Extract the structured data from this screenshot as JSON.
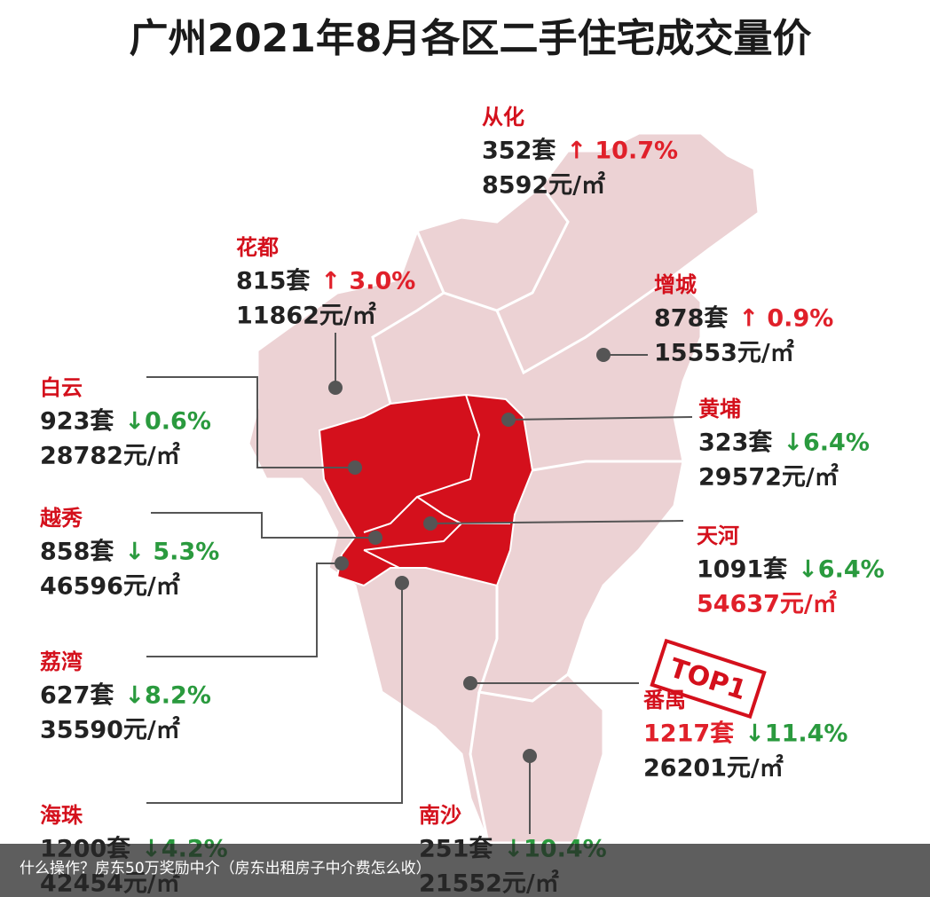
{
  "header": {
    "title": "广州2021年8月各区二手住宅成交量价"
  },
  "stamp": "TOP1",
  "districts": [
    {
      "name": "从化",
      "sales": "352套",
      "change": "↑ 10.7%",
      "price": "8592元/㎡",
      "change_color": "#e0202a",
      "sales_color": "#222222",
      "price_color": "#222222"
    },
    {
      "name": "花都",
      "sales": "815套",
      "change": "↑ 3.0%",
      "price": "11862元/㎡",
      "change_color": "#e0202a",
      "sales_color": "#222222",
      "price_color": "#222222"
    },
    {
      "name": "增城",
      "sales": "878套",
      "change": "↑ 0.9%",
      "price": "15553元/㎡",
      "change_color": "#e0202a",
      "sales_color": "#222222",
      "price_color": "#222222"
    },
    {
      "name": "白云",
      "sales": "923套",
      "change": "↓0.6%",
      "price": "28782元/㎡",
      "change_color": "#2a9a3e",
      "sales_color": "#222222",
      "price_color": "#222222"
    },
    {
      "name": "黄埔",
      "sales": "323套",
      "change": "↓6.4%",
      "price": "29572元/㎡",
      "change_color": "#2a9a3e",
      "sales_color": "#222222",
      "price_color": "#222222"
    },
    {
      "name": "越秀",
      "sales": "858套",
      "change": "↓ 5.3%",
      "price": "46596元/㎡",
      "change_color": "#2a9a3e",
      "sales_color": "#222222",
      "price_color": "#222222"
    },
    {
      "name": "天河",
      "sales": "1091套",
      "change": "↓6.4%",
      "price": "54637元/㎡",
      "change_color": "#2a9a3e",
      "sales_color": "#222222",
      "price_color": "#e0202a"
    },
    {
      "name": "荔湾",
      "sales": "627套",
      "change": "↓8.2%",
      "price": "35590元/㎡",
      "change_color": "#2a9a3e",
      "sales_color": "#222222",
      "price_color": "#222222"
    },
    {
      "name": "番禺",
      "sales": "1217套",
      "change": "↓11.4%",
      "price": "26201元/㎡",
      "change_color": "#2a9a3e",
      "sales_color": "#e0202a",
      "price_color": "#222222"
    },
    {
      "name": "海珠",
      "sales": "1200套",
      "change": "↓4.2%",
      "price": "42454元/㎡",
      "change_color": "#2a9a3e",
      "sales_color": "#222222",
      "price_color": "#222222"
    },
    {
      "name": "南沙",
      "sales": "251套",
      "change": "↓10.4%",
      "price": "21552元/㎡",
      "change_color": "#2a9a3e",
      "sales_color": "#222222",
      "price_color": "#222222"
    }
  ],
  "caption": "什么操作？房东50万奖励中介（房东出租房子中介费怎么收）"
}
